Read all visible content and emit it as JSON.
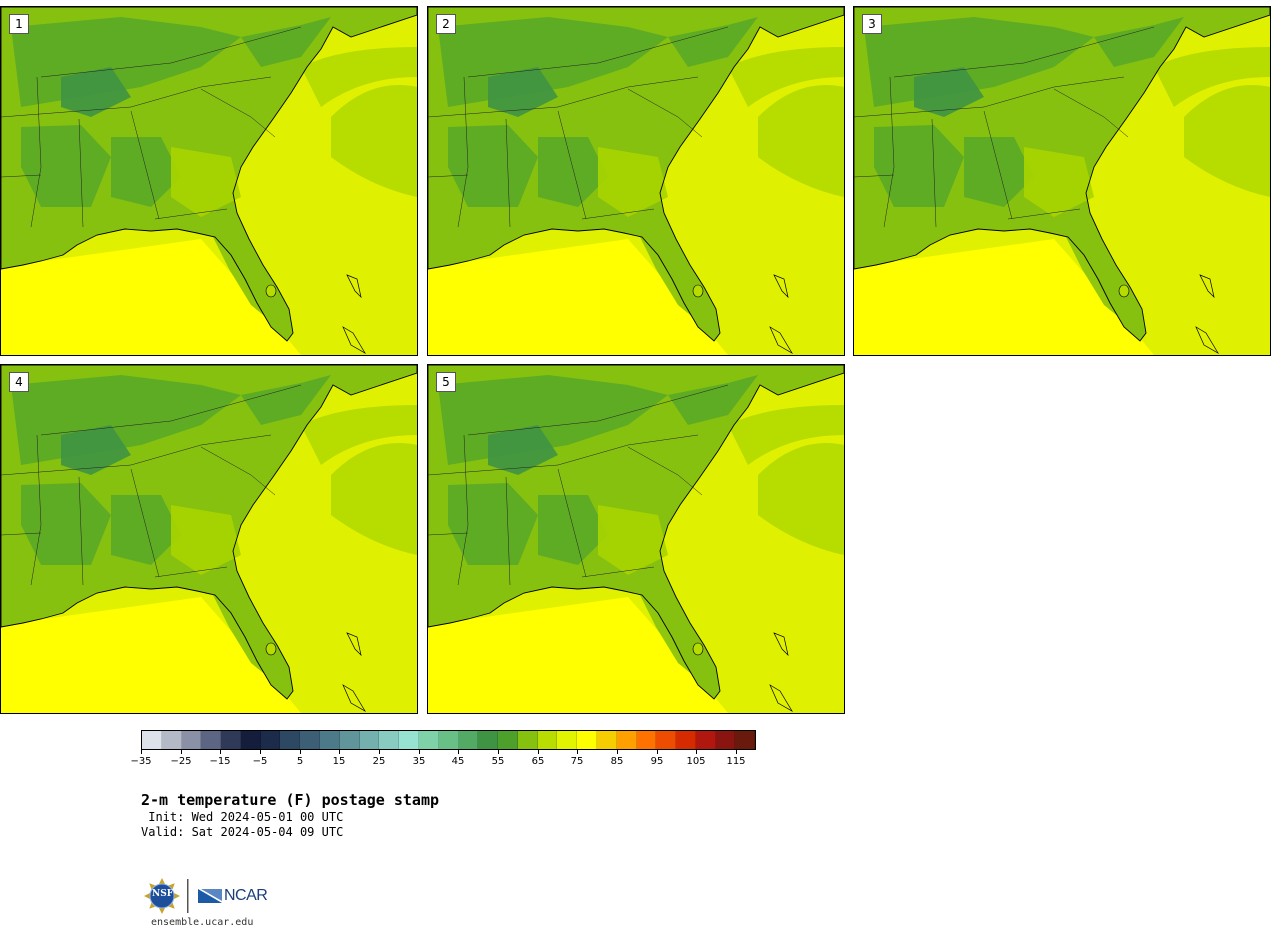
{
  "panels": [
    {
      "label": "1"
    },
    {
      "label": "2"
    },
    {
      "label": "3"
    },
    {
      "label": "4"
    },
    {
      "label": "5"
    }
  ],
  "colorbar": {
    "colors": [
      "#dde2ea",
      "#b4b9c8",
      "#8a90a6",
      "#5c6684",
      "#2f3a58",
      "#141e3c",
      "#1d2b4b",
      "#2c4863",
      "#3c5f76",
      "#4d7a89",
      "#5f959b",
      "#73b0ae",
      "#88ccc1",
      "#97e3d1",
      "#7fd2a8",
      "#69c087",
      "#53aa65",
      "#3f9444",
      "#4da029",
      "#86c10f",
      "#b9dd00",
      "#e1f400",
      "#ffff00",
      "#f6cd00",
      "#ff9f00",
      "#ff7200",
      "#ee4c00",
      "#d62a00",
      "#b0170f",
      "#8a1410",
      "#6a1a0c"
    ],
    "ticks": [
      "−35",
      "−25",
      "−15",
      "−5",
      "5",
      "15",
      "25",
      "35",
      "45",
      "55",
      "65",
      "75",
      "85",
      "95",
      "105",
      "115"
    ]
  },
  "title": "2-m temperature (F) postage stamp",
  "init": " Init: Wed 2024-05-01 00 UTC",
  "valid": "Valid: Sat 2024-05-04 09 UTC",
  "footer": {
    "logo_nsf": "NSF",
    "logo_ncar": "NCAR",
    "url": "ensemble.ucar.edu"
  },
  "map_colors": {
    "ocean_warm": "#ffff00",
    "ocean_mid": "#dff000",
    "ocean_cool": "#b6dc00",
    "land_warm": "#a9d400",
    "land_mid": "#86c10f",
    "land_cool": "#5aa827",
    "land_cold": "#3f9444"
  }
}
